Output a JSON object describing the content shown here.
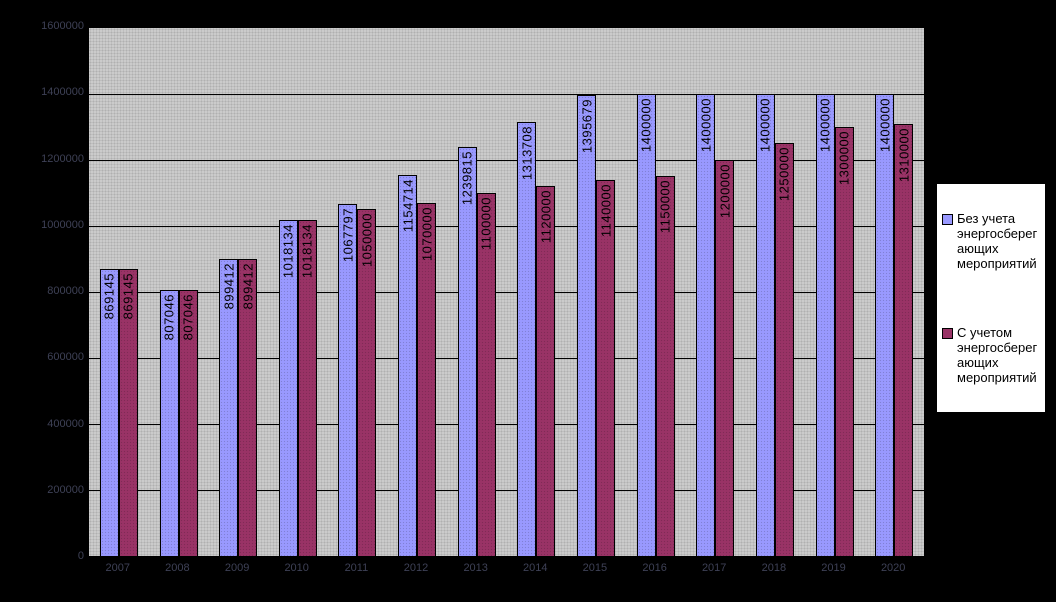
{
  "chart_data": {
    "type": "bar",
    "title": "",
    "categories": [
      "2007",
      "2008",
      "2009",
      "2010",
      "2011",
      "2012",
      "2013",
      "2014",
      "2015",
      "2016",
      "2017",
      "2018",
      "2019",
      "2020"
    ],
    "series": [
      {
        "name": "Без учета энергосберегающих мероприятий",
        "color": "#9999FF",
        "values": [
          869145,
          807046,
          899412,
          1018134,
          1067797,
          1154714,
          1239815,
          1313708,
          1395679,
          1400000,
          1400000,
          1400000,
          1400000,
          1400000
        ]
      },
      {
        "name": "С учетом энергосберегающих мероприятий",
        "color": "#993366",
        "values": [
          869145,
          807046,
          899412,
          1018134,
          1050000,
          1070000,
          1100000,
          1120000,
          1140000,
          1150000,
          1200000,
          1250000,
          1300000,
          1310000
        ]
      }
    ],
    "xlabel": "",
    "ylabel": "",
    "ylim": [
      0,
      1600000
    ],
    "ytick_step": 200000,
    "y_tick_labels": [
      "1600000",
      "1400000",
      "1200000",
      "1000000",
      "800000",
      "600000",
      "400000",
      "200000",
      "0"
    ],
    "grid": true,
    "data_labels": true,
    "legend_position": "right"
  },
  "legend": {
    "entries": [
      {
        "label": "Без учета\nэнергосберег\nающих\nмероприятий",
        "color": "#9999FF"
      },
      {
        "label": "С учетом\nэнергосберег\nающих\nмероприятий",
        "color": "#993366"
      }
    ]
  },
  "colors": {
    "background": "#000000",
    "plot_fill": "#CBCBCB",
    "gridline": "#000000",
    "axis_text": "#3E4156",
    "data_label_text": "#000000",
    "legend_background": "#FFFFFF"
  }
}
